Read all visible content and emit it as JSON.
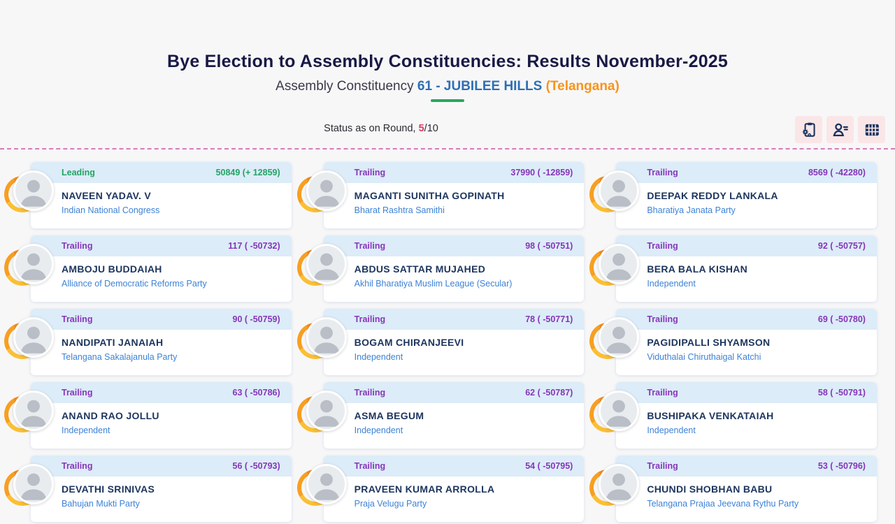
{
  "page": {
    "title": "Bye Election to Assembly Constituencies: Results November-2025",
    "subtitle_prefix": "Assembly Constituency ",
    "subtitle_constituency": "61 - JUBILEE HILLS",
    "subtitle_state": " (Telangana)"
  },
  "status_bar": {
    "label": "Status as on Round, ",
    "round_current": "5",
    "round_separator": "/",
    "round_total": "10"
  },
  "toolbar": {
    "icons": [
      {
        "name": "result-process-report-icon"
      },
      {
        "name": "candidate-list-icon"
      },
      {
        "name": "table-view-icon"
      }
    ]
  },
  "accents": {
    "leading_green": "#23a364",
    "trailing_purple": "#8636b8",
    "constituency_blue": "#2e6fb3",
    "state_orange": "#f7941e",
    "round_red": "#e03a60",
    "party_blue": "#3d82d6",
    "name_navy": "#1c355e",
    "card_header_blue": "#dcecf8",
    "avatar_ring_orange": "#f8a21f",
    "toolbar_pink": "#fbe6e7",
    "divider_pink": "#d87ab8",
    "underline_green": "#2aa75f"
  },
  "candidates": [
    {
      "status": "Leading",
      "votes": "50849 (+ 12859)",
      "name": "NAVEEN YADAV. V",
      "party": "Indian National Congress"
    },
    {
      "status": "Trailing",
      "votes": "37990 ( -12859)",
      "name": "MAGANTI SUNITHA GOPINATH",
      "party": "Bharat Rashtra Samithi"
    },
    {
      "status": "Trailing",
      "votes": "8569 ( -42280)",
      "name": "DEEPAK REDDY LANKALA",
      "party": "Bharatiya Janata Party"
    },
    {
      "status": "Trailing",
      "votes": "117 ( -50732)",
      "name": "AMBOJU BUDDAIAH",
      "party": "Alliance of Democratic Reforms Party"
    },
    {
      "status": "Trailing",
      "votes": "98 ( -50751)",
      "name": "ABDUS SATTAR MUJAHED",
      "party": "Akhil Bharatiya Muslim League (Secular)"
    },
    {
      "status": "Trailing",
      "votes": "92 ( -50757)",
      "name": "BERA BALA KISHAN",
      "party": "Independent"
    },
    {
      "status": "Trailing",
      "votes": "90 ( -50759)",
      "name": "NANDIPATI JANAIAH",
      "party": "Telangana Sakalajanula Party"
    },
    {
      "status": "Trailing",
      "votes": "78 ( -50771)",
      "name": "BOGAM CHIRANJEEVI",
      "party": "Independent"
    },
    {
      "status": "Trailing",
      "votes": "69 ( -50780)",
      "name": "PAGIDIPALLI SHYAMSON",
      "party": "Viduthalai Chiruthaigal Katchi"
    },
    {
      "status": "Trailing",
      "votes": "63 ( -50786)",
      "name": "ANAND RAO JOLLU",
      "party": "Independent"
    },
    {
      "status": "Trailing",
      "votes": "62 ( -50787)",
      "name": "ASMA BEGUM",
      "party": "Independent"
    },
    {
      "status": "Trailing",
      "votes": "58 ( -50791)",
      "name": "BUSHIPAKA VENKATAIAH",
      "party": "Independent"
    },
    {
      "status": "Trailing",
      "votes": "56 ( -50793)",
      "name": "DEVATHI SRINIVAS",
      "party": "Bahujan Mukti Party"
    },
    {
      "status": "Trailing",
      "votes": "54 ( -50795)",
      "name": "PRAVEEN KUMAR ARROLLA",
      "party": "Praja Velugu Party"
    },
    {
      "status": "Trailing",
      "votes": "53 ( -50796)",
      "name": "CHUNDI SHOBHAN BABU",
      "party": "Telangana Prajaa Jeevana Rythu Party"
    }
  ]
}
